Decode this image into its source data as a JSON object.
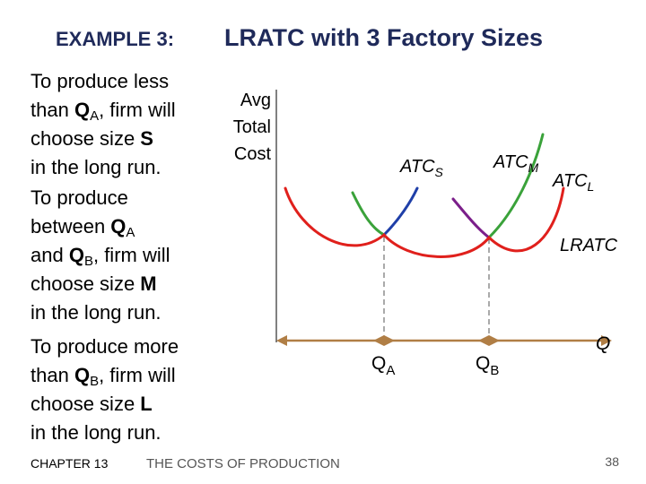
{
  "title": {
    "label": "EXAMPLE 3:",
    "text": "LRATC with 3 Factory Sizes"
  },
  "paragraphs": [
    [
      [
        "To produce less"
      ],
      [
        "than ",
        "Q",
        "A",
        ", firm will"
      ],
      [
        "choose size ",
        "S"
      ],
      [
        "in the long run."
      ]
    ],
    [
      [
        "To produce"
      ],
      [
        "between ",
        "Q",
        "A"
      ],
      [
        "and ",
        "Q",
        "B",
        ", firm will"
      ],
      [
        "choose size ",
        "M"
      ],
      [
        "in the long run."
      ]
    ],
    [
      [
        "To produce more"
      ],
      [
        "than ",
        "Q",
        "B",
        ", firm will"
      ],
      [
        "choose size ",
        "L"
      ],
      [
        "in the long run."
      ]
    ]
  ],
  "diagram": {
    "y_axis_label": [
      "Avg",
      "Total",
      "Cost"
    ],
    "curves": [
      {
        "name": "ATC",
        "sub": "S"
      },
      {
        "name": "ATC",
        "sub": "M"
      },
      {
        "name": "ATC",
        "sub": "L"
      }
    ],
    "lratc": "LRATC",
    "x_marks": [
      {
        "name": "Q",
        "sub": "A"
      },
      {
        "name": "Q",
        "sub": "B"
      }
    ],
    "x_axis_label": "Q"
  },
  "footer": {
    "chapter": "CHAPTER 13",
    "topic": "THE COSTS OF PRODUCTION",
    "page": "38"
  }
}
